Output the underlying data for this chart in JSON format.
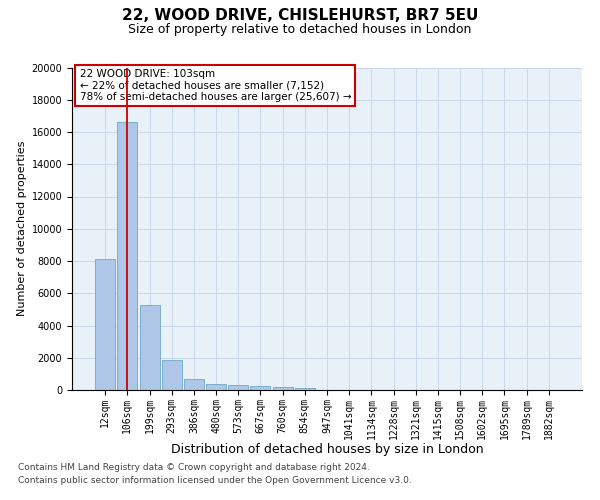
{
  "title1": "22, WOOD DRIVE, CHISLEHURST, BR7 5EU",
  "title2": "Size of property relative to detached houses in London",
  "xlabel": "Distribution of detached houses by size in London",
  "ylabel": "Number of detached properties",
  "categories": [
    "12sqm",
    "106sqm",
    "199sqm",
    "293sqm",
    "386sqm",
    "480sqm",
    "573sqm",
    "667sqm",
    "760sqm",
    "854sqm",
    "947sqm",
    "1041sqm",
    "1134sqm",
    "1228sqm",
    "1321sqm",
    "1415sqm",
    "1508sqm",
    "1602sqm",
    "1695sqm",
    "1789sqm",
    "1882sqm"
  ],
  "values": [
    8100,
    16600,
    5300,
    1850,
    700,
    380,
    280,
    220,
    180,
    130,
    0,
    0,
    0,
    0,
    0,
    0,
    0,
    0,
    0,
    0,
    0
  ],
  "bar_color": "#aec6e8",
  "bar_edge_color": "#7aaed0",
  "vline_x": 1,
  "vline_color": "#cc0000",
  "annotation_text": "22 WOOD DRIVE: 103sqm\n← 22% of detached houses are smaller (7,152)\n78% of semi-detached houses are larger (25,607) →",
  "ylim": [
    0,
    20000
  ],
  "yticks": [
    0,
    2000,
    4000,
    6000,
    8000,
    10000,
    12000,
    14000,
    16000,
    18000,
    20000
  ],
  "grid_color": "#c8d8ea",
  "background_color": "#e8f0f8",
  "footer1": "Contains HM Land Registry data © Crown copyright and database right 2024.",
  "footer2": "Contains public sector information licensed under the Open Government Licence v3.0.",
  "title1_fontsize": 11,
  "title2_fontsize": 9,
  "xlabel_fontsize": 9,
  "ylabel_fontsize": 8,
  "tick_fontsize": 7,
  "annotation_fontsize": 7.5,
  "footer_fontsize": 6.5
}
